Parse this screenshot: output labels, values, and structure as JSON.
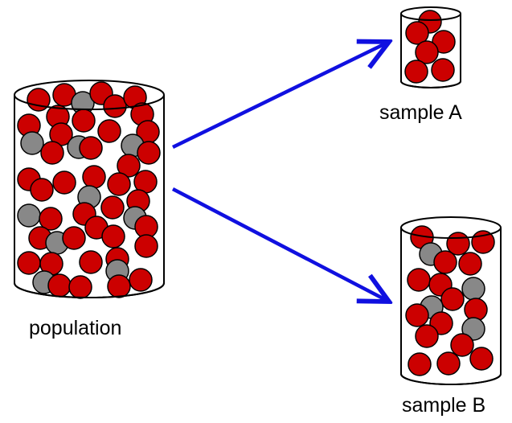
{
  "labels": {
    "population": "population",
    "sample_a": "sample A",
    "sample_b": "sample B"
  },
  "colors": {
    "red_ball": "#cc0000",
    "gray_ball": "#888888",
    "ball_outline": "#000000",
    "arrow": "#1010e0",
    "container_outline": "#000000"
  },
  "icons": {
    "population_container": "cylinder-jar-icon",
    "sample_a_container": "cylinder-jar-icon",
    "sample_b_container": "cylinder-jar-icon",
    "arrow_to_a": "arrow-right-up-icon",
    "arrow_to_b": "arrow-right-down-icon"
  }
}
